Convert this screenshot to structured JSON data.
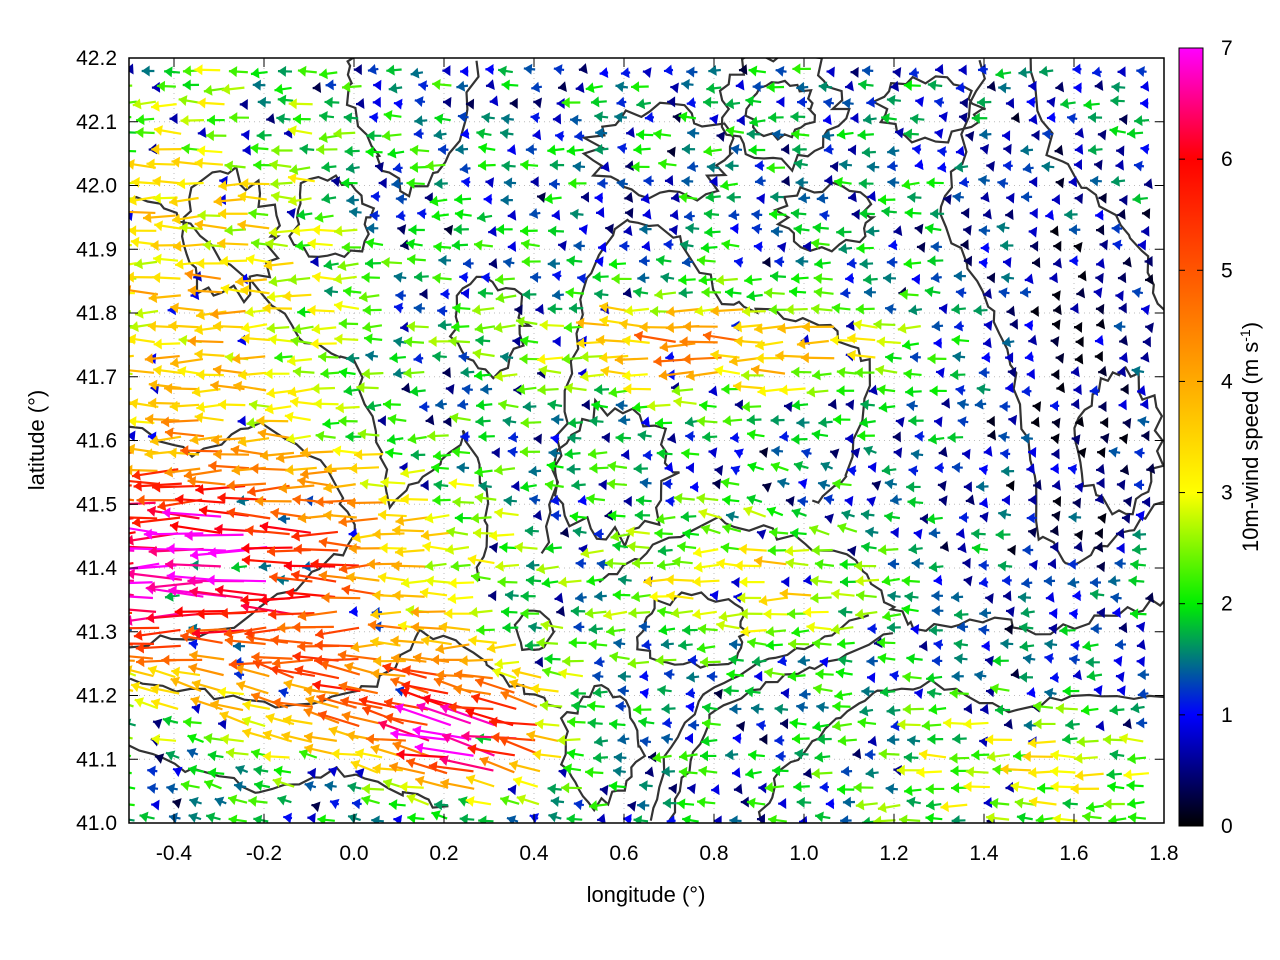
{
  "chart_data": {
    "type": "vector_field",
    "title": "",
    "xlabel": "longitude (°)",
    "ylabel": "latitude (°)",
    "xlim": [
      -0.5,
      1.8
    ],
    "ylim": [
      41.0,
      42.2
    ],
    "x_ticks": [
      -0.4,
      -0.2,
      0.0,
      0.2,
      0.4,
      0.6,
      0.8,
      1.0,
      1.2,
      1.4,
      1.6,
      1.8
    ],
    "x_tick_labels": [
      "-0.4",
      "-0.2",
      "0.0",
      "0.2",
      "0.4",
      "0.6",
      "0.8",
      "1.0",
      "1.2",
      "1.4",
      "1.6",
      "1.8"
    ],
    "y_ticks": [
      41.0,
      41.1,
      41.2,
      41.3,
      41.4,
      41.5,
      41.6,
      41.7,
      41.8,
      41.9,
      42.0,
      42.1,
      42.2
    ],
    "y_tick_labels": [
      "41.0",
      "41.1",
      "41.2",
      "41.3",
      "41.4",
      "41.5",
      "41.6",
      "41.7",
      "41.8",
      "41.9",
      "42.0",
      "42.1",
      "42.2"
    ],
    "grid": "dotted",
    "colorbar": {
      "label_main": "10m-wind speed (m s",
      "label_sup": "-1",
      "label_end": ")",
      "range": [
        0,
        7
      ],
      "tick_values": [
        0,
        1,
        2,
        3,
        4,
        5,
        6,
        7
      ],
      "tick_labels": [
        "0",
        "1",
        "2",
        "3",
        "4",
        "5",
        "6",
        "7"
      ],
      "palette": [
        {
          "value": 0,
          "color": "#000000"
        },
        {
          "value": 1,
          "color": "#0000ff"
        },
        {
          "value": 2,
          "color": "#00ee00"
        },
        {
          "value": 3,
          "color": "#ffff00"
        },
        {
          "value": 4,
          "color": "#ffaa00"
        },
        {
          "value": 5,
          "color": "#ff5500"
        },
        {
          "value": 6,
          "color": "#ff0000"
        },
        {
          "value": 7,
          "color": "#ff00ff"
        }
      ]
    },
    "wind_field": {
      "description_units": "m s-1",
      "grid_dx_deg": 0.05,
      "grid_dy_deg": 0.025,
      "dominant_direction": "from east (arrows pointing west)",
      "regions": [
        {
          "area": "west of 0.3 lon, 41.25-41.55 lat",
          "speed": 6.5,
          "direction": "west-southwest"
        },
        {
          "area": "west of 0.1 lon, 41.6-42.2 lat",
          "speed": 3.5,
          "direction": "west"
        },
        {
          "area": "0.4-1.2 lon, 41.65-41.85 lat",
          "speed": 4.5,
          "direction": "west"
        },
        {
          "area": "0.2-0.45 lon, 41.05-41.2 lat",
          "speed": 6.8,
          "direction": "west-northwest"
        },
        {
          "area": "1.1-1.8 lon, 41.0-41.2 lat",
          "speed": 2.8,
          "direction": "west"
        },
        {
          "area": "1.4-1.8 lon, 41.35-42.2 lat",
          "speed": 1.2,
          "direction": "west"
        },
        {
          "area": "0.4-1.0 lon, 41.95-42.2 lat",
          "speed": 1.8,
          "direction": "west"
        }
      ]
    },
    "contours": {
      "color": "#333333",
      "description": "terrain elevation isolines (unlabeled)"
    }
  }
}
